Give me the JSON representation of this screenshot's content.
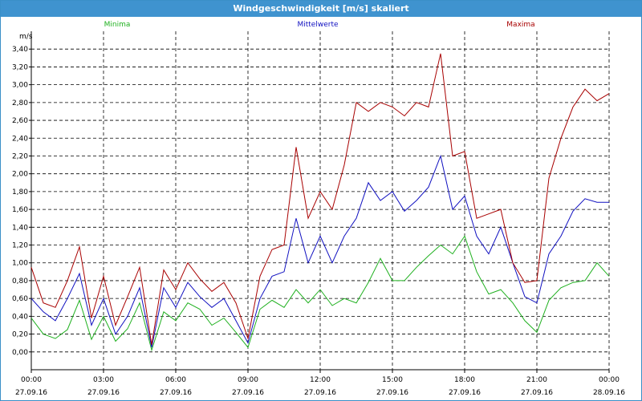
{
  "window": {
    "title": "Windgeschwindigkeit [m/s] skaliert"
  },
  "colors": {
    "minima": "#1fb01f",
    "mittelwerte": "#1010c0",
    "maxima": "#a80000",
    "grid": "#000000",
    "titlebar": "#3f93cf"
  },
  "chart_data": {
    "type": "line",
    "title": "Windgeschwindigkeit [m/s] skaliert",
    "ylabel": "m/s",
    "ylim": [
      -0.2,
      3.6
    ],
    "yticks": [
      "0,00",
      "0,20",
      "0,40",
      "0,60",
      "0,80",
      "1,00",
      "1,20",
      "1,40",
      "1,60",
      "1,80",
      "2,00",
      "2,20",
      "2,40",
      "2,60",
      "2,80",
      "3,00",
      "3,20",
      "3,40"
    ],
    "xlim": [
      0,
      24
    ],
    "xticks": [
      {
        "time": "00:00",
        "date": "27.09.16"
      },
      {
        "time": "03:00",
        "date": "27.09.16"
      },
      {
        "time": "06:00",
        "date": "27.09.16"
      },
      {
        "time": "09:00",
        "date": "27.09.16"
      },
      {
        "time": "12:00",
        "date": "27.09.16"
      },
      {
        "time": "15:00",
        "date": "27.09.16"
      },
      {
        "time": "18:00",
        "date": "27.09.16"
      },
      {
        "time": "21:00",
        "date": "27.09.16"
      },
      {
        "time": "00:00",
        "date": "28.09.16"
      }
    ],
    "grid": true,
    "legend_position": "top",
    "x_hours": [
      0,
      0.5,
      1,
      1.5,
      2,
      2.5,
      3,
      3.5,
      4,
      4.5,
      5,
      5.5,
      6,
      6.5,
      7,
      7.5,
      8,
      8.5,
      9,
      9.5,
      10,
      10.5,
      11,
      11.5,
      12,
      12.5,
      13,
      13.5,
      14,
      14.5,
      15,
      15.5,
      16,
      16.5,
      17,
      17.5,
      18,
      18.5,
      19,
      19.5,
      20,
      20.5,
      21,
      21.5,
      22,
      22.5,
      23,
      23.5,
      24
    ],
    "series": [
      {
        "name": "Minima",
        "key": "minima",
        "values": [
          0.38,
          0.2,
          0.15,
          0.25,
          0.58,
          0.14,
          0.4,
          0.12,
          0.26,
          0.55,
          0.02,
          0.45,
          0.35,
          0.55,
          0.48,
          0.3,
          0.38,
          0.22,
          0.05,
          0.48,
          0.58,
          0.5,
          0.7,
          0.55,
          0.7,
          0.52,
          0.6,
          0.55,
          0.78,
          1.05,
          0.8,
          0.8,
          0.95,
          1.08,
          1.2,
          1.1,
          1.3,
          0.9,
          0.65,
          0.7,
          0.55,
          0.35,
          0.22,
          0.58,
          0.72,
          0.78,
          0.8,
          1.0,
          0.85
        ]
      },
      {
        "name": "Mittelwerte",
        "key": "mittelwerte",
        "values": [
          0.6,
          0.45,
          0.35,
          0.6,
          0.88,
          0.3,
          0.6,
          0.2,
          0.4,
          0.72,
          0.05,
          0.72,
          0.5,
          0.78,
          0.62,
          0.5,
          0.6,
          0.35,
          0.1,
          0.6,
          0.85,
          0.9,
          1.5,
          1.0,
          1.3,
          1.0,
          1.3,
          1.5,
          1.9,
          1.7,
          1.8,
          1.58,
          1.7,
          1.85,
          2.2,
          1.6,
          1.75,
          1.3,
          1.1,
          1.4,
          1.0,
          0.62,
          0.55,
          1.1,
          1.3,
          1.58,
          1.72,
          1.68,
          1.68
        ]
      },
      {
        "name": "Maxima",
        "key": "maxima",
        "values": [
          0.95,
          0.55,
          0.5,
          0.8,
          1.18,
          0.38,
          0.85,
          0.3,
          0.62,
          0.95,
          0.08,
          0.92,
          0.7,
          1.0,
          0.82,
          0.68,
          0.78,
          0.55,
          0.15,
          0.85,
          1.15,
          1.2,
          2.3,
          1.5,
          1.8,
          1.6,
          2.1,
          2.8,
          2.7,
          2.8,
          2.75,
          2.65,
          2.8,
          2.75,
          3.35,
          2.2,
          2.25,
          1.5,
          1.55,
          1.6,
          1.0,
          0.78,
          0.8,
          1.95,
          2.4,
          2.75,
          2.95,
          2.82,
          2.9
        ]
      }
    ]
  }
}
